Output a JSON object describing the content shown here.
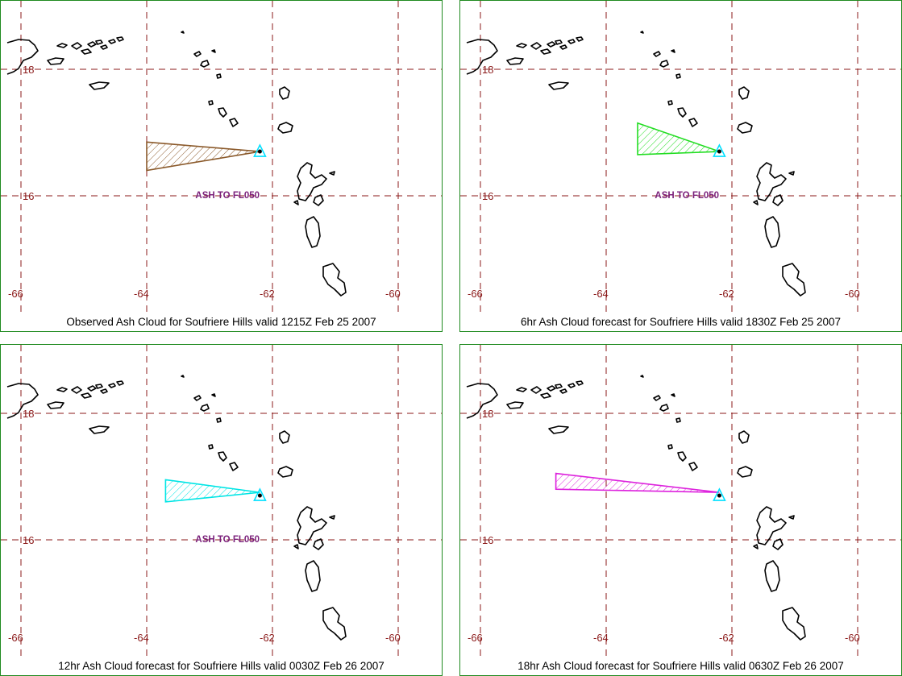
{
  "colors": {
    "panel_border": "#1f8a1f",
    "grid": "#8b1a1a",
    "coastline": "#000000",
    "volcano_marker": "#00e0ff",
    "label_text": "#7a1f7a"
  },
  "grid_labels": {
    "longitudes": [
      "-66",
      "-64",
      "-62",
      "-60"
    ],
    "latitudes": [
      "18",
      "16"
    ]
  },
  "volcano": {
    "name": "Soufriere Hills",
    "lon": -62.2,
    "lat": 16.7,
    "marker_icon": "volcano-triangle-icon"
  },
  "panels": [
    {
      "id": "observed",
      "caption": "Observed Ash Cloud for Soufriere  Hills valid 1215Z Feb 25 2007",
      "cloud_color": "#8b5a2b",
      "ash_label": "ASH TO FL050",
      "cloud_polygon": [
        [
          -64.0,
          16.85
        ],
        [
          -62.2,
          16.7
        ],
        [
          -64.0,
          16.4
        ]
      ]
    },
    {
      "id": "forecast-6hr",
      "caption": "6hr Ash Cloud forecast for Soufriere  Hills valid 1830Z Feb 25 2007",
      "cloud_color": "#22dd22",
      "ash_label": "ASH TO FL050",
      "cloud_polygon": [
        [
          -63.5,
          17.15
        ],
        [
          -62.2,
          16.7
        ],
        [
          -63.5,
          16.65
        ]
      ]
    },
    {
      "id": "forecast-12hr",
      "caption": "12hr Ash Cloud forecast for Soufriere  Hills valid 0030Z Feb 26 2007",
      "cloud_color": "#00e5e5",
      "ash_label": "ASH TO FL050",
      "cloud_polygon": [
        [
          -63.7,
          16.95
        ],
        [
          -62.2,
          16.75
        ],
        [
          -63.7,
          16.6
        ]
      ]
    },
    {
      "id": "forecast-18hr",
      "caption": "18hr Ash Cloud forecast for Soufriere  Hills valid 0630Z Feb 26 2007",
      "cloud_color": "#dd22dd",
      "ash_label": "",
      "cloud_polygon": [
        [
          -64.8,
          17.05
        ],
        [
          -62.2,
          16.75
        ],
        [
          -64.8,
          16.8
        ]
      ]
    }
  ]
}
